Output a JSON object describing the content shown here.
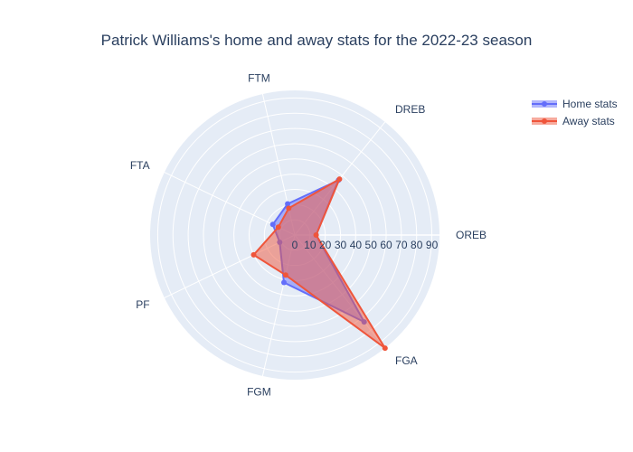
{
  "chart_data": {
    "type": "radar",
    "title": "Patrick Williams's home and away stats for the 2022-23 season",
    "categories": [
      "OREB",
      "DREB",
      "FTM",
      "FTA",
      "PF",
      "FGM",
      "FGA"
    ],
    "radial_range": [
      0,
      95
    ],
    "radial_ticks": [
      0,
      10,
      20,
      30,
      40,
      50,
      60,
      70,
      80,
      90
    ],
    "legend_position": "top-right",
    "series": [
      {
        "name": "Home stats",
        "color": "#636efa",
        "values": [
          14,
          46,
          21,
          16,
          11,
          32,
          73
        ]
      },
      {
        "name": "Away stats",
        "color": "#ef553b",
        "values": [
          14,
          47,
          18,
          12,
          30,
          27,
          95
        ]
      }
    ]
  }
}
